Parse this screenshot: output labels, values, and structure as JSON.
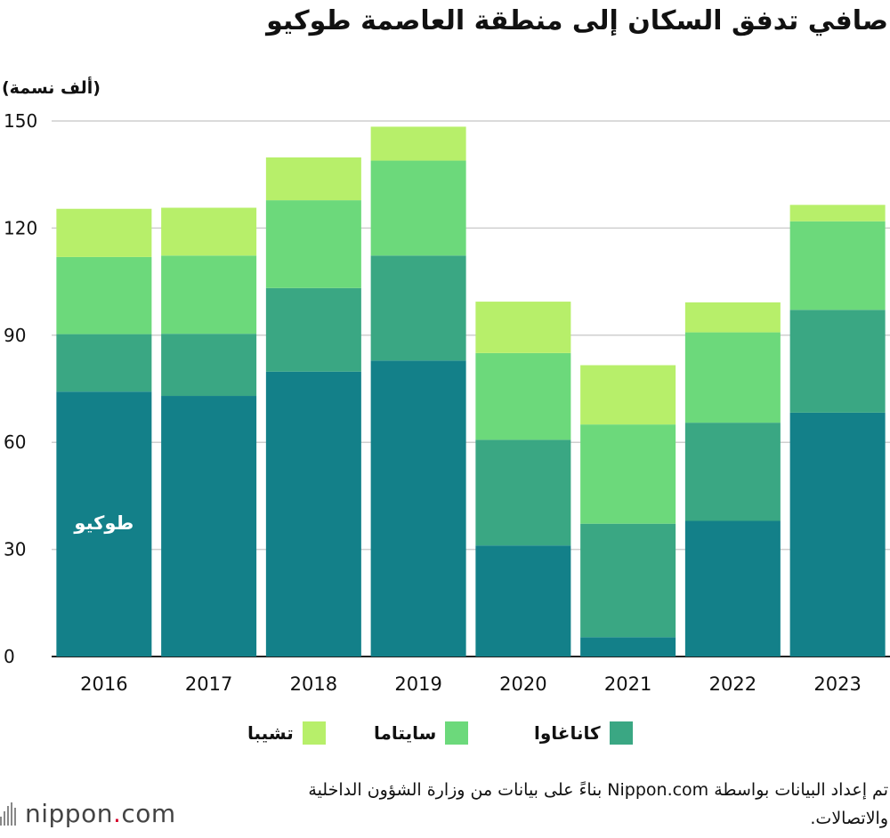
{
  "chart_data": {
    "type": "bar",
    "stacked": true,
    "title": "صافي تدفق السكان إلى منطقة العاصمة طوكيو",
    "ylabel": "(ألف نسمة)",
    "categories": [
      "2016",
      "2017",
      "2018",
      "2019",
      "2020",
      "2021",
      "2022",
      "2023"
    ],
    "ylim": [
      0,
      150
    ],
    "yticks": [
      0,
      30,
      60,
      90,
      120,
      150
    ],
    "grid": true,
    "series": [
      {
        "name": "طوكيو",
        "color": "#138089",
        "values": [
          74.2,
          73,
          79.8,
          82.9,
          31.1,
          5.4,
          38,
          68.3
        ]
      },
      {
        "name": "كاناغاوا",
        "color": "#3aa783",
        "values": [
          16.1,
          17.4,
          23.4,
          29.4,
          29.6,
          31.8,
          27.5,
          28.8
        ]
      },
      {
        "name": "سايتاما",
        "color": "#6cd97b",
        "values": [
          21.6,
          21.9,
          24.6,
          26.6,
          24.3,
          27.8,
          25.3,
          24.8
        ]
      },
      {
        "name": "تشيبا",
        "color": "#b7ef6a",
        "values": [
          13.5,
          13.4,
          12,
          9.5,
          14.4,
          16.6,
          8.4,
          4.6
        ]
      }
    ],
    "legend": {
      "placement": "bottom",
      "entries": [
        "كاناغاوا",
        "سايتاما",
        "تشيبا"
      ]
    },
    "annotations": [
      {
        "text": "طوكيو",
        "series": "طوكيو",
        "category": "2016"
      }
    ]
  },
  "source": "تم إعداد البيانات بواسطة Nippon.com بناءً على بيانات من وزارة الشؤون الداخلية والاتصالات.",
  "logo": {
    "name": "nippon",
    "dot": ".",
    "tld": "com"
  }
}
